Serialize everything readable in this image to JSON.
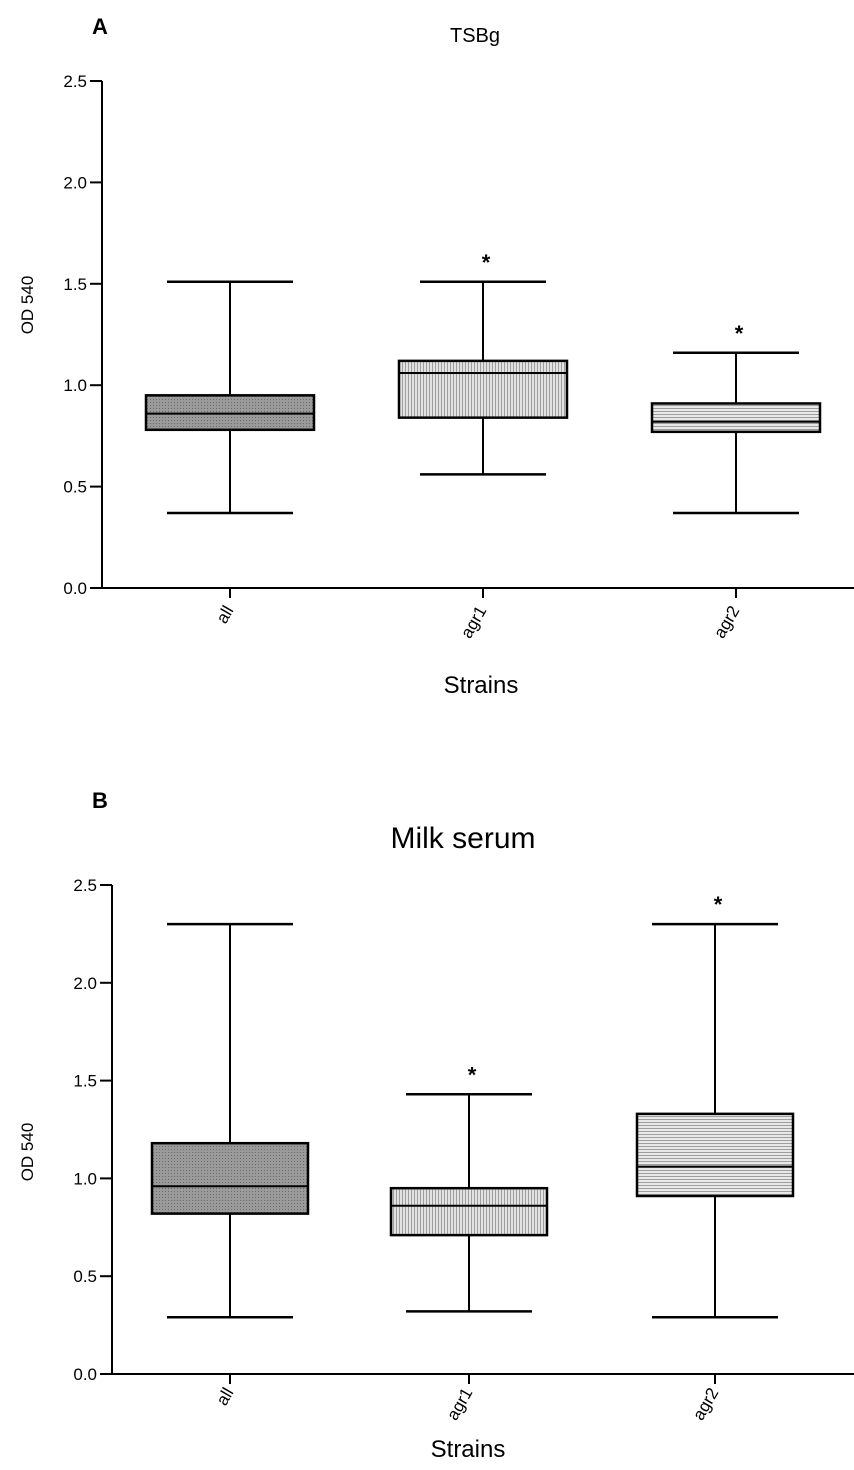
{
  "chart_data": [
    {
      "type": "boxplot",
      "panel": "A",
      "title": "TSBg",
      "xlabel": "Strains",
      "ylabel": "OD 540",
      "ylim": [
        0,
        2.5
      ],
      "yticks": [
        "0.0",
        "0.5",
        "1.0",
        "1.5",
        "2.0",
        "2.5"
      ],
      "categories": [
        "all",
        "agr1",
        "agr2"
      ],
      "boxes": [
        {
          "name": "all",
          "min": 0.37,
          "q1": 0.78,
          "median": 0.86,
          "q3": 0.95,
          "max": 1.51,
          "marker": ""
        },
        {
          "name": "agr1",
          "min": 0.56,
          "q1": 0.84,
          "median": 1.06,
          "q3": 1.12,
          "max": 1.51,
          "marker": "*"
        },
        {
          "name": "agr2",
          "min": 0.37,
          "q1": 0.77,
          "median": 0.82,
          "q3": 0.91,
          "max": 1.16,
          "marker": "*"
        }
      ],
      "colors": {
        "all": "#909090",
        "agr1": "#d4d4d4",
        "agr2": "#dadada"
      }
    },
    {
      "type": "boxplot",
      "panel": "B",
      "title": "Milk serum",
      "xlabel": "Strains",
      "ylabel": "OD 540",
      "ylim": [
        0,
        2.5
      ],
      "yticks": [
        "0.0",
        "0.5",
        "1.0",
        "1.5",
        "2.0",
        "2.5"
      ],
      "categories": [
        "all",
        "agr1",
        "agr2"
      ],
      "boxes": [
        {
          "name": "all",
          "min": 0.29,
          "q1": 0.82,
          "median": 0.96,
          "q3": 1.18,
          "max": 2.3,
          "marker": ""
        },
        {
          "name": "agr1",
          "min": 0.32,
          "q1": 0.71,
          "median": 0.86,
          "q3": 0.95,
          "max": 1.43,
          "marker": "*"
        },
        {
          "name": "agr2",
          "min": 0.29,
          "q1": 0.91,
          "median": 1.06,
          "q3": 1.33,
          "max": 2.3,
          "marker": "*"
        }
      ],
      "colors": {
        "all": "#909090",
        "agr1": "#d4d4d4",
        "agr2": "#dadada"
      }
    }
  ]
}
